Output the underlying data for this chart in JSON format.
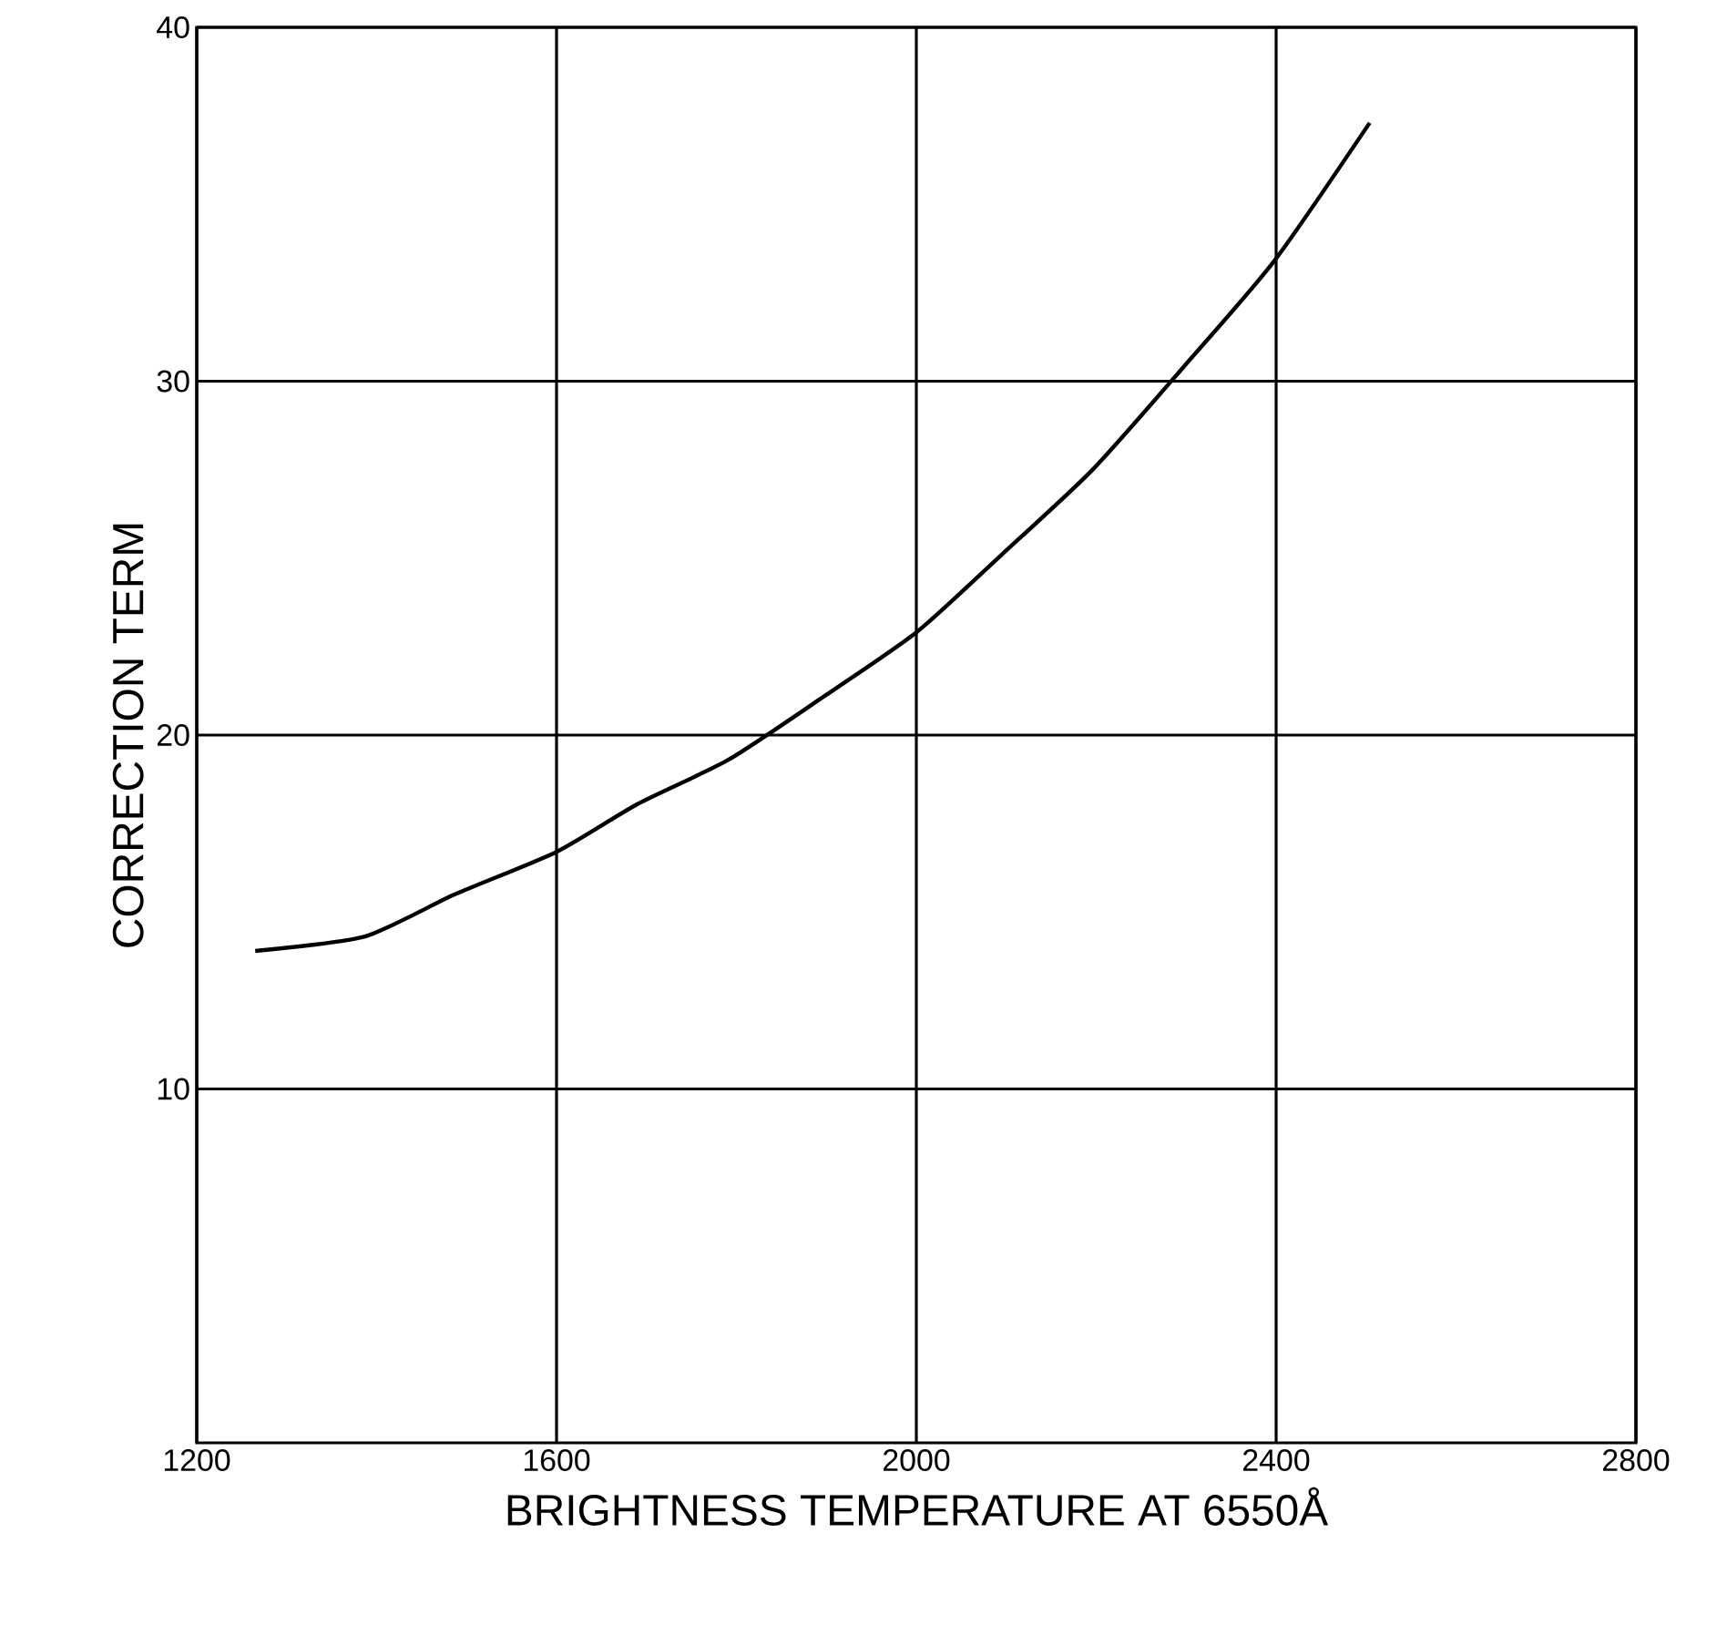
{
  "chart_data": {
    "type": "line",
    "xlabel": "BRIGHTNESS TEMPERATURE AT 6550Å",
    "ylabel": "CORRECTION   TERM",
    "x": [
      1265,
      1386,
      1487,
      1600,
      1690,
      1791,
      1892,
      2000,
      2095,
      2196,
      2297,
      2398,
      2504
    ],
    "series": [
      {
        "color": "#000000",
        "values": [
          13.9,
          14.3,
          15.5,
          16.7,
          18.05,
          19.3,
          21.0,
          22.9,
          25.1,
          27.5,
          30.4,
          33.4,
          37.3
        ]
      }
    ],
    "xlim": [
      1200,
      2800
    ],
    "ylim": [
      0,
      40
    ],
    "xticks": [
      1200,
      1600,
      2000,
      2400,
      2800
    ],
    "yticks": [
      10,
      20,
      30,
      40
    ],
    "grid": true,
    "marker": "none",
    "line_style": "solid"
  }
}
